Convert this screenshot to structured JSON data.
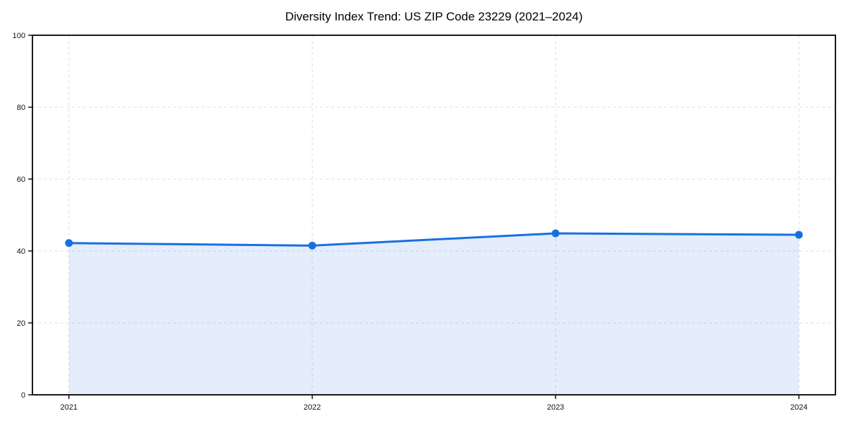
{
  "figure": {
    "background": "#ffffff"
  },
  "chart_data": {
    "type": "area",
    "title": "Diversity Index Trend: US ZIP Code 23229 (2021–2024)",
    "x": [
      2021,
      2022,
      2023,
      2024
    ],
    "x_labels": [
      "2021",
      "2022",
      "2023",
      "2024"
    ],
    "series": [
      {
        "name": "Diversity Index",
        "values": [
          42.2,
          41.5,
          44.9,
          44.5
        ]
      }
    ],
    "xlabel": "",
    "ylabel": "",
    "ylim": [
      0,
      100
    ],
    "yticks": [
      0,
      20,
      40,
      60,
      80,
      100
    ],
    "grid": true,
    "grid_style": "dashed",
    "legend_position": "none",
    "line_color": "#1a6fe0",
    "fill_color": "#1a6fe0",
    "fill_opacity": 0.12,
    "grid_color": "#dcdcdc",
    "axis_color": "#000000",
    "tick_label_color": "#111111",
    "marker": "circle"
  }
}
